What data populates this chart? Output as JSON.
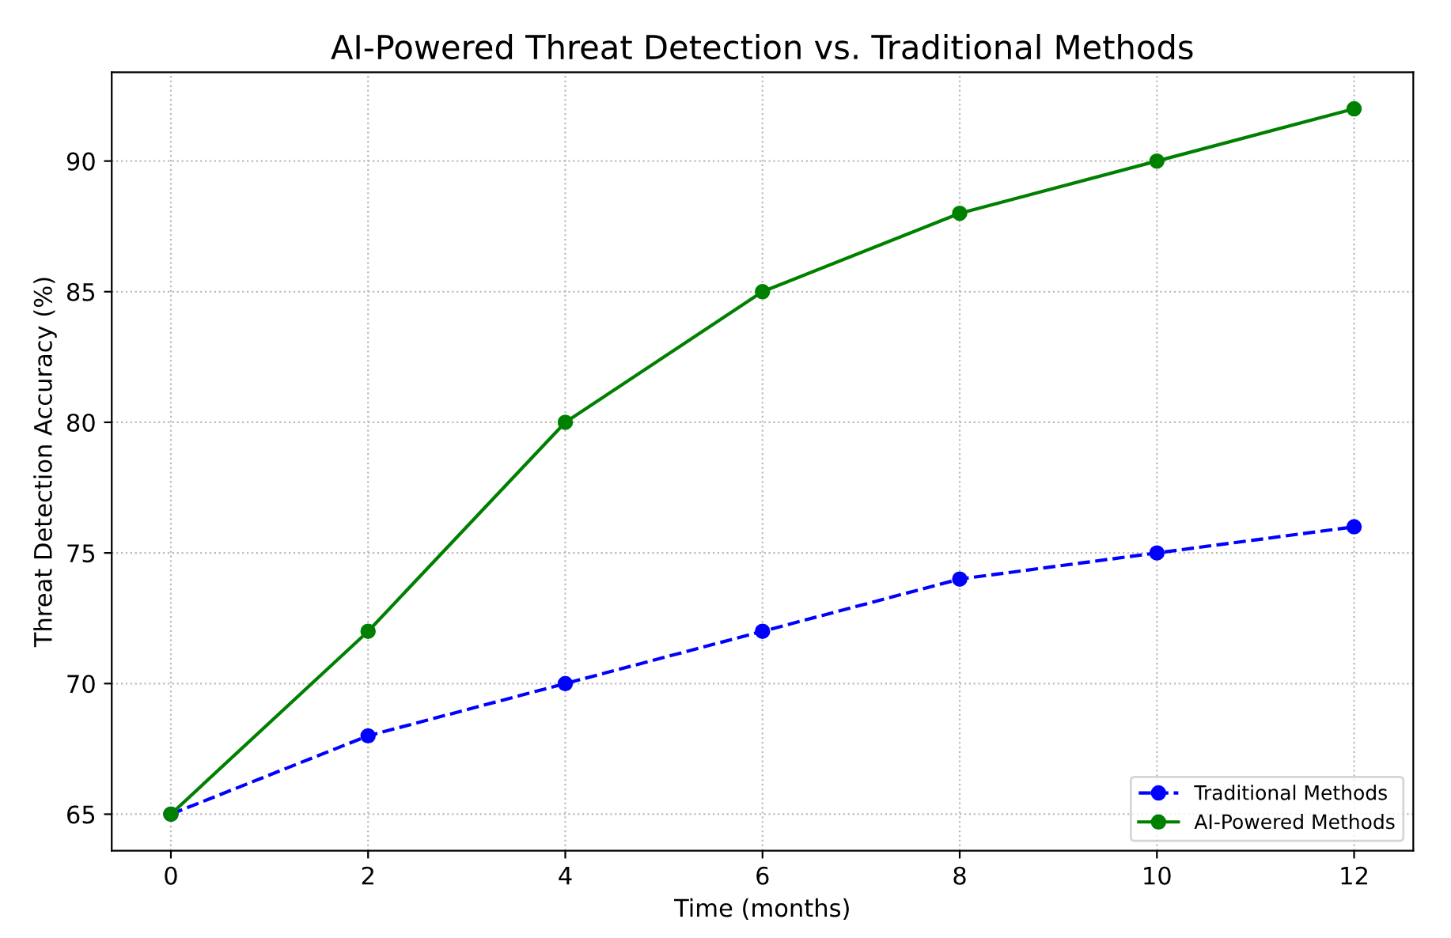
{
  "chart_data": {
    "type": "line",
    "title": "AI-Powered Threat Detection vs. Traditional Methods",
    "xlabel": "Time (months)",
    "ylabel": "Threat Detection Accuracy (%)",
    "x": [
      0,
      2,
      4,
      6,
      8,
      10,
      12
    ],
    "series": [
      {
        "name": "Traditional Methods",
        "color": "#0000ff",
        "values": [
          65,
          68,
          70,
          72,
          74,
          75,
          76
        ],
        "line_style": "dashed",
        "marker": "circle"
      },
      {
        "name": "AI-Powered Methods",
        "color": "#008000",
        "values": [
          65,
          72,
          80,
          85,
          88,
          90,
          92
        ],
        "line_style": "solid",
        "marker": "circle"
      }
    ],
    "xlim": [
      -0.6,
      12.6
    ],
    "ylim": [
      63.6,
      93.4
    ],
    "xticks": [
      0,
      2,
      4,
      6,
      8,
      10,
      12
    ],
    "yticks": [
      65,
      70,
      75,
      80,
      85,
      90
    ],
    "grid": true,
    "legend": "bottom right"
  }
}
